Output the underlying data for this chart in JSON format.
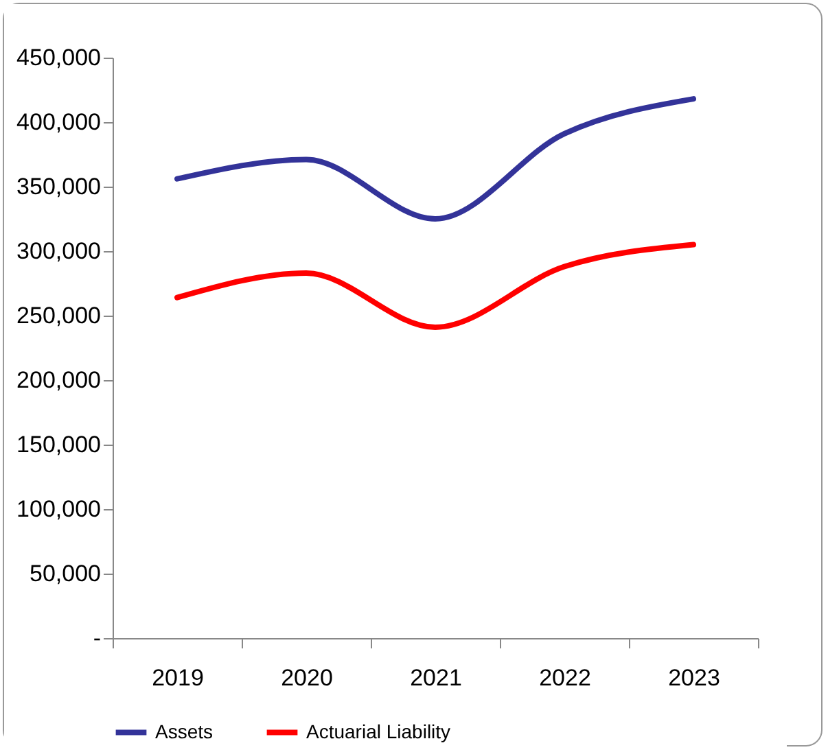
{
  "chart_data": {
    "type": "line",
    "categories": [
      "2019",
      "2020",
      "2021",
      "2022",
      "2023"
    ],
    "series": [
      {
        "name": "Assets",
        "color": "#333399",
        "values": [
          356000,
          371000,
          325000,
          391000,
          418000
        ]
      },
      {
        "name": "Actuarial Liability",
        "color": "#ff0000",
        "values": [
          264000,
          283000,
          241000,
          288000,
          305000
        ]
      }
    ],
    "ylim": [
      0,
      450000
    ],
    "yticks": [
      {
        "value": 0,
        "label": "-"
      },
      {
        "value": 50000,
        "label": "50,000"
      },
      {
        "value": 100000,
        "label": "100,000"
      },
      {
        "value": 150000,
        "label": "150,000"
      },
      {
        "value": 200000,
        "label": "200,000"
      },
      {
        "value": 250000,
        "label": "250,000"
      },
      {
        "value": 300000,
        "label": "300,000"
      },
      {
        "value": 350000,
        "label": "350,000"
      },
      {
        "value": 400000,
        "label": "400,000"
      },
      {
        "value": 450000,
        "label": "450,000"
      }
    ],
    "grid": false,
    "legend": "bottom",
    "marker": "none",
    "line_style": "solid"
  }
}
